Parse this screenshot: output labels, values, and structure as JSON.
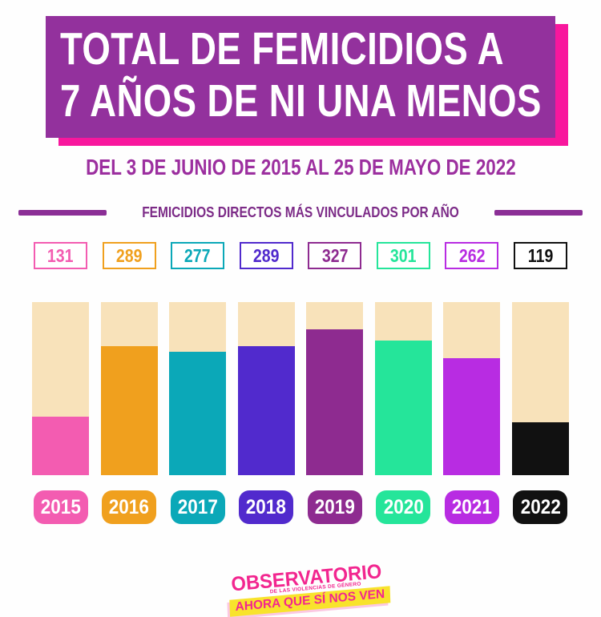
{
  "header": {
    "title_line1": "TOTAL DE FEMICIDIOS A",
    "title_line2": "7 AÑOS DE NI UNA MENOS",
    "subtitle": "DEL 3 DE JUNIO DE 2015 AL 25 DE MAYO DE 2022",
    "bg_color": "#93319d",
    "shadow_color": "#f8179d"
  },
  "section": {
    "label": "FEMICIDIOS DIRECTOS MÁS VINCULADOS POR AÑO"
  },
  "chart_data": {
    "type": "bar",
    "title": "Total de femicidios a 7 años de Ni Una Menos",
    "subtitle": "Del 3 de junio de 2015 al 25 de mayo de 2022",
    "series_label": "Femicidios directos más vinculados por año",
    "categories": [
      "2015",
      "2016",
      "2017",
      "2018",
      "2019",
      "2020",
      "2021",
      "2022"
    ],
    "values": [
      131,
      289,
      277,
      289,
      327,
      301,
      262,
      119
    ],
    "colors": [
      "#f35cb1",
      "#f0a01e",
      "#0ba8b8",
      "#512acd",
      "#8e2b90",
      "#25e59a",
      "#b82ce2",
      "#111111"
    ],
    "track_color": "#f8e2ba",
    "xlabel": "",
    "ylabel": "",
    "ylim": [
      0,
      327
    ],
    "grid": false,
    "legend_position": "none",
    "value_labels_position": "top-boxes"
  },
  "footer": {
    "logo_name": "OBSERVATORIO",
    "logo_sub": "DE LAS VIOLENCIAS DE GÉNERO",
    "logo_tagline": "AHORA QUE SÍ NOS VEN",
    "logo_pink": "#f2268f",
    "logo_yellow": "#f8e32c"
  }
}
